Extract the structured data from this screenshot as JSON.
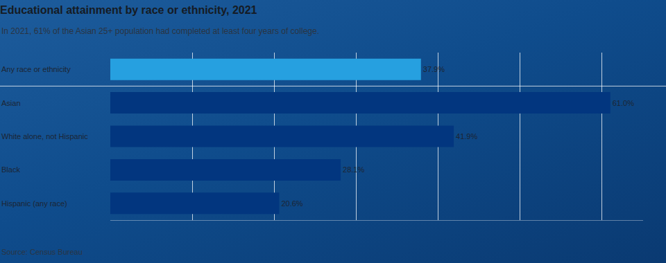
{
  "chart_data": {
    "type": "bar",
    "title": "Educational attainment by race or ethnicity, 2021",
    "subtitle": "In 2021, 61% of the Asian 25+ population had completed at least four years of college.",
    "source": "Source: Census Bureau",
    "orientation": "horizontal",
    "categories": [
      "Any race or ethnicity",
      "Asian",
      "White alone, not Hispanic",
      "Black",
      "Hispanic (any race)"
    ],
    "values": [
      37.9,
      61.0,
      41.9,
      28.1,
      20.6
    ],
    "value_labels": [
      "37.9%",
      "61.0%",
      "41.9%",
      "28.1%",
      "20.6%"
    ],
    "colors": [
      "#26a0e0",
      "#02367f",
      "#02367f",
      "#02367f",
      "#02367f"
    ],
    "xlim": [
      0,
      65
    ],
    "xticks": [
      0,
      10,
      20,
      30,
      40,
      50,
      60
    ],
    "grid": true,
    "data_labels": true,
    "tick_labels": "y"
  }
}
